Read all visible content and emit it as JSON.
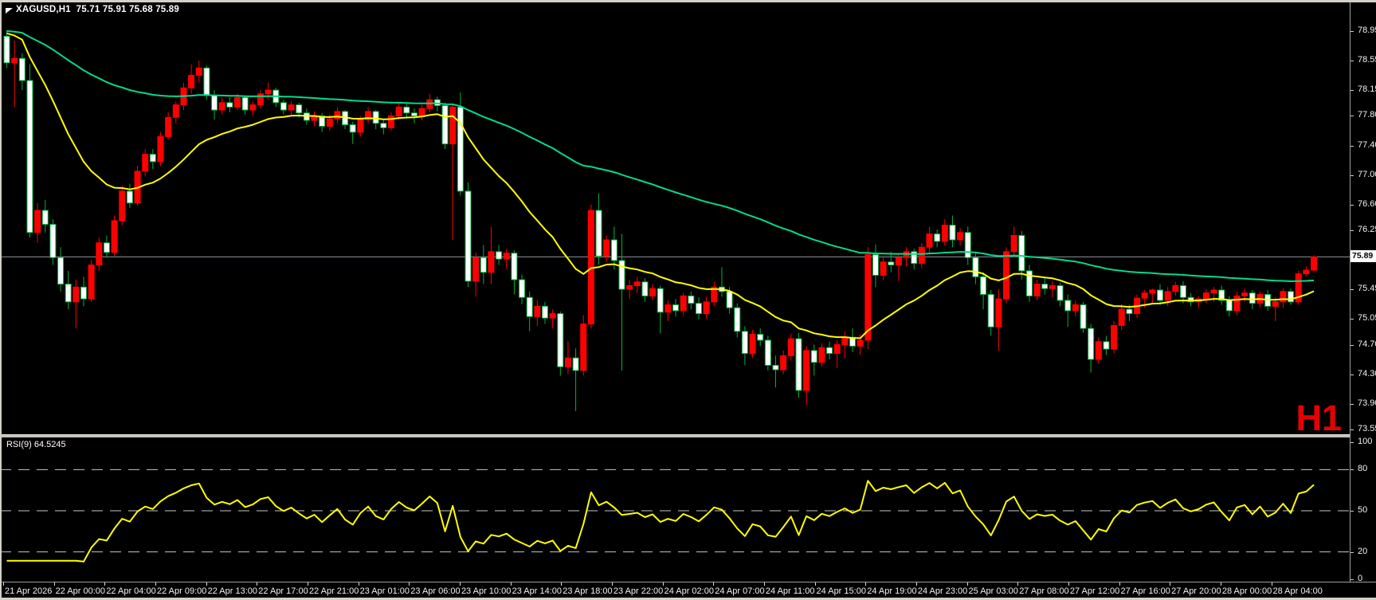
{
  "header": {
    "title": "XAGUSD,H1  75.71 75.91 75.68 75.89"
  },
  "colors": {
    "background": "#000000",
    "chrome": "#d4d0c8",
    "bull": "#FF0000",
    "bear_fill": "#FFFFFF",
    "bear_border": "#00B43C",
    "ma_slow": "#00DC8C",
    "ma_fast": "#FFFF00",
    "rsi_line": "#FFFF00",
    "rsi_level": "#C8C8C8",
    "price_line": "#8E959C",
    "axis_text": "#F2F2F2",
    "watermark": "#E60000"
  },
  "chart_data": {
    "type": "candlestick",
    "symbol": "XAGUSD",
    "timeframe": "H1",
    "title": "XAGUSD,H1",
    "last_ohlc": {
      "open": "75.71",
      "high": "75.91",
      "low": "75.68",
      "close": "75.89"
    },
    "current_price": 75.89,
    "current_price_label": "75.89",
    "watermark": "H1",
    "price_axis_ticks": [
      78.95,
      78.55,
      78.15,
      77.8,
      77.4,
      77.0,
      76.6,
      76.25,
      75.45,
      75.05,
      74.7,
      74.3,
      73.9,
      73.55
    ],
    "ylim": [
      73.48,
      79.33
    ],
    "grid": "off",
    "legend_position": "none",
    "indicators": [
      {
        "name": "ma-slow",
        "type": "ema",
        "period": 90,
        "color": "#00DC8C"
      },
      {
        "name": "ma-fast",
        "type": "ema",
        "period": 21,
        "color": "#FFFF00"
      }
    ],
    "rsi": {
      "label": "RSI(9) 64.5245",
      "period": 9,
      "last_value": 64.5245,
      "levels": [
        80,
        50,
        20
      ],
      "scale_labels": [
        100,
        80,
        50,
        20,
        0
      ],
      "range": [
        0,
        100
      ],
      "color": "#FFFF00"
    },
    "time_labels": [
      "21 Apr 2026",
      "22 Apr 00:00",
      "22 Apr 04:00",
      "22 Apr 09:00",
      "22 Apr 13:00",
      "22 Apr 17:00",
      "22 Apr 21:00",
      "23 Apr 01:00",
      "23 Apr 06:00",
      "23 Apr 10:00",
      "23 Apr 14:00",
      "23 Apr 18:00",
      "23 Apr 22:00",
      "24 Apr 02:00",
      "24 Apr 07:00",
      "24 Apr 11:00",
      "24 Apr 15:00",
      "24 Apr 19:00",
      "24 Apr 23:00",
      "25 Apr 03:00",
      "27 Apr 08:00",
      "27 Apr 12:00",
      "27 Apr 16:00",
      "27 Apr 20:00",
      "28 Apr 00:00",
      "28 Apr 04:00"
    ],
    "candles": [
      [
        78.88,
        78.96,
        78.45,
        78.52
      ],
      [
        78.52,
        78.82,
        77.92,
        78.58
      ],
      [
        78.58,
        78.65,
        78.15,
        78.28
      ],
      [
        78.28,
        78.5,
        76.15,
        76.22
      ],
      [
        76.22,
        76.62,
        76.08,
        76.52
      ],
      [
        76.52,
        76.66,
        76.22,
        76.33
      ],
      [
        76.33,
        76.4,
        75.78,
        75.88
      ],
      [
        75.88,
        76.02,
        75.42,
        75.52
      ],
      [
        75.52,
        75.7,
        75.18,
        75.28
      ],
      [
        75.28,
        75.58,
        74.92,
        75.48
      ],
      [
        75.48,
        75.62,
        75.22,
        75.32
      ],
      [
        75.32,
        75.85,
        75.28,
        75.78
      ],
      [
        75.78,
        76.15,
        75.7,
        76.08
      ],
      [
        76.08,
        76.18,
        75.88,
        75.95
      ],
      [
        75.95,
        76.45,
        75.9,
        76.38
      ],
      [
        76.38,
        76.85,
        76.32,
        76.78
      ],
      [
        76.78,
        76.88,
        76.55,
        76.62
      ],
      [
        76.62,
        77.12,
        76.58,
        77.05
      ],
      [
        77.05,
        77.35,
        76.98,
        77.28
      ],
      [
        77.28,
        77.35,
        77.08,
        77.18
      ],
      [
        77.18,
        77.58,
        77.12,
        77.52
      ],
      [
        77.52,
        77.85,
        77.48,
        77.78
      ],
      [
        77.78,
        78.0,
        77.7,
        77.95
      ],
      [
        77.95,
        78.25,
        77.88,
        78.18
      ],
      [
        78.18,
        78.5,
        78.1,
        78.35
      ],
      [
        78.35,
        78.55,
        78.25,
        78.45
      ],
      [
        78.45,
        78.48,
        78.02,
        78.08
      ],
      [
        78.08,
        78.15,
        77.75,
        77.88
      ],
      [
        77.88,
        78.05,
        77.82,
        77.98
      ],
      [
        77.98,
        78.05,
        77.85,
        77.92
      ],
      [
        77.92,
        78.1,
        77.88,
        78.05
      ],
      [
        78.05,
        78.08,
        77.82,
        77.88
      ],
      [
        77.88,
        78.0,
        77.8,
        77.95
      ],
      [
        77.95,
        78.15,
        77.9,
        78.1
      ],
      [
        78.1,
        78.25,
        78.02,
        78.15
      ],
      [
        78.15,
        78.18,
        77.92,
        77.98
      ],
      [
        77.98,
        78.02,
        77.82,
        77.88
      ],
      [
        77.88,
        78.0,
        77.82,
        77.95
      ],
      [
        77.95,
        77.98,
        77.78,
        77.84
      ],
      [
        77.84,
        77.9,
        77.68,
        77.74
      ],
      [
        77.74,
        77.86,
        77.66,
        77.8
      ],
      [
        77.8,
        77.84,
        77.58,
        77.66
      ],
      [
        77.66,
        77.82,
        77.6,
        77.76
      ],
      [
        77.76,
        77.92,
        77.7,
        77.86
      ],
      [
        77.86,
        77.88,
        77.62,
        77.68
      ],
      [
        77.68,
        77.72,
        77.42,
        77.58
      ],
      [
        77.58,
        77.8,
        77.52,
        77.75
      ],
      [
        77.75,
        77.92,
        77.7,
        77.86
      ],
      [
        77.86,
        77.88,
        77.62,
        77.7
      ],
      [
        77.7,
        77.76,
        77.55,
        77.64
      ],
      [
        77.64,
        77.85,
        77.6,
        77.8
      ],
      [
        77.8,
        77.98,
        77.75,
        77.92
      ],
      [
        77.92,
        77.96,
        77.76,
        77.84
      ],
      [
        77.84,
        77.9,
        77.7,
        77.8
      ],
      [
        77.8,
        77.95,
        77.74,
        77.9
      ],
      [
        77.9,
        78.1,
        77.85,
        78.02
      ],
      [
        78.02,
        78.06,
        77.86,
        77.94
      ],
      [
        77.94,
        77.98,
        77.35,
        77.42
      ],
      [
        77.42,
        77.96,
        76.12,
        77.92
      ],
      [
        77.92,
        78.12,
        76.72,
        76.78
      ],
      [
        76.78,
        76.9,
        75.48,
        75.56
      ],
      [
        75.56,
        75.95,
        75.35,
        75.88
      ],
      [
        75.88,
        76.05,
        75.52,
        75.68
      ],
      [
        75.68,
        76.3,
        75.52,
        75.96
      ],
      [
        75.96,
        76.05,
        75.78,
        75.86
      ],
      [
        75.86,
        76.0,
        75.72,
        75.94
      ],
      [
        75.94,
        75.98,
        75.38,
        75.58
      ],
      [
        75.58,
        75.65,
        75.25,
        75.34
      ],
      [
        75.34,
        75.42,
        74.88,
        75.08
      ],
      [
        75.08,
        75.3,
        74.95,
        75.22
      ],
      [
        75.22,
        75.28,
        74.98,
        75.06
      ],
      [
        75.06,
        75.18,
        74.92,
        75.12
      ],
      [
        75.12,
        75.15,
        74.28,
        74.4
      ],
      [
        74.4,
        74.75,
        74.3,
        74.52
      ],
      [
        74.52,
        74.65,
        73.8,
        74.35
      ],
      [
        74.35,
        75.1,
        74.28,
        74.98
      ],
      [
        74.98,
        76.6,
        74.92,
        76.52
      ],
      [
        76.52,
        76.75,
        75.78,
        75.9
      ],
      [
        75.9,
        76.18,
        75.82,
        76.12
      ],
      [
        76.12,
        76.3,
        75.72,
        75.84
      ],
      [
        75.84,
        76.2,
        74.35,
        75.45
      ],
      [
        75.45,
        75.58,
        75.32,
        75.5
      ],
      [
        75.5,
        75.62,
        75.4,
        75.55
      ],
      [
        75.55,
        75.6,
        75.28,
        75.36
      ],
      [
        75.36,
        75.52,
        75.3,
        75.46
      ],
      [
        75.46,
        75.5,
        74.85,
        75.14
      ],
      [
        75.14,
        75.3,
        75.02,
        75.24
      ],
      [
        75.24,
        75.32,
        75.08,
        75.16
      ],
      [
        75.16,
        75.4,
        75.1,
        75.36
      ],
      [
        75.36,
        75.42,
        75.18,
        75.26
      ],
      [
        75.26,
        75.34,
        75.04,
        75.12
      ],
      [
        75.12,
        75.35,
        75.05,
        75.28
      ],
      [
        75.28,
        75.55,
        75.22,
        75.48
      ],
      [
        75.48,
        75.75,
        75.35,
        75.42
      ],
      [
        75.42,
        75.48,
        75.12,
        75.2
      ],
      [
        75.2,
        75.26,
        74.8,
        74.88
      ],
      [
        74.88,
        74.95,
        74.42,
        74.58
      ],
      [
        74.58,
        74.9,
        74.52,
        74.84
      ],
      [
        74.84,
        74.92,
        74.68,
        74.76
      ],
      [
        74.76,
        74.82,
        74.35,
        74.42
      ],
      [
        74.42,
        74.55,
        74.12,
        74.36
      ],
      [
        74.36,
        74.62,
        74.3,
        74.55
      ],
      [
        74.55,
        74.85,
        74.48,
        74.78
      ],
      [
        74.78,
        74.86,
        73.98,
        74.08
      ],
      [
        74.08,
        74.68,
        73.88,
        74.62
      ],
      [
        74.62,
        74.7,
        74.28,
        74.46
      ],
      [
        74.46,
        74.72,
        74.4,
        74.66
      ],
      [
        74.66,
        74.74,
        74.5,
        74.58
      ],
      [
        74.58,
        74.76,
        74.38,
        74.7
      ],
      [
        74.7,
        74.88,
        74.52,
        74.8
      ],
      [
        74.8,
        74.92,
        74.6,
        74.68
      ],
      [
        74.68,
        74.84,
        74.56,
        74.76
      ],
      [
        74.76,
        76.02,
        74.64,
        75.92
      ],
      [
        75.92,
        76.06,
        75.48,
        75.64
      ],
      [
        75.64,
        75.9,
        75.58,
        75.82
      ],
      [
        75.82,
        75.96,
        75.68,
        75.78
      ],
      [
        75.78,
        75.94,
        75.56,
        75.88
      ],
      [
        75.88,
        76.02,
        75.76,
        75.96
      ],
      [
        75.96,
        76.0,
        75.72,
        75.8
      ],
      [
        75.8,
        76.08,
        75.74,
        76.02
      ],
      [
        76.02,
        76.3,
        75.94,
        76.2
      ],
      [
        76.2,
        76.26,
        76.02,
        76.1
      ],
      [
        76.1,
        76.4,
        76.04,
        76.32
      ],
      [
        76.32,
        76.45,
        76.02,
        76.12
      ],
      [
        76.12,
        76.28,
        76.04,
        76.22
      ],
      [
        76.22,
        76.3,
        75.78,
        75.88
      ],
      [
        75.88,
        75.94,
        75.52,
        75.62
      ],
      [
        75.62,
        75.68,
        75.18,
        75.38
      ],
      [
        75.38,
        75.44,
        74.82,
        74.94
      ],
      [
        74.94,
        75.45,
        74.62,
        75.32
      ],
      [
        75.32,
        76.02,
        75.26,
        75.96
      ],
      [
        75.96,
        76.3,
        75.88,
        76.18
      ],
      [
        76.18,
        76.24,
        75.58,
        75.7
      ],
      [
        75.7,
        75.78,
        75.28,
        75.36
      ],
      [
        75.36,
        75.58,
        75.3,
        75.52
      ],
      [
        75.52,
        75.6,
        75.38,
        75.46
      ],
      [
        75.46,
        75.56,
        75.34,
        75.5
      ],
      [
        75.5,
        75.54,
        75.22,
        75.3
      ],
      [
        75.3,
        75.38,
        74.94,
        75.16
      ],
      [
        75.16,
        75.3,
        75.08,
        75.24
      ],
      [
        75.24,
        75.28,
        74.86,
        74.92
      ],
      [
        74.92,
        74.98,
        74.32,
        74.5
      ],
      [
        74.5,
        74.8,
        74.44,
        74.74
      ],
      [
        74.74,
        74.82,
        74.56,
        74.64
      ],
      [
        74.64,
        75.02,
        74.58,
        74.96
      ],
      [
        74.96,
        75.25,
        74.9,
        75.18
      ],
      [
        75.18,
        75.24,
        75.02,
        75.12
      ],
      [
        75.12,
        75.38,
        75.06,
        75.33
      ],
      [
        75.33,
        75.44,
        75.2,
        75.4
      ],
      [
        75.4,
        75.46,
        75.26,
        75.44
      ],
      [
        75.44,
        75.52,
        75.24,
        75.3
      ],
      [
        75.3,
        75.48,
        75.22,
        75.42
      ],
      [
        75.42,
        75.55,
        75.36,
        75.5
      ],
      [
        75.5,
        75.56,
        75.26,
        75.34
      ],
      [
        75.34,
        75.4,
        75.22,
        75.28
      ],
      [
        75.28,
        75.36,
        75.2,
        75.32
      ],
      [
        75.32,
        75.45,
        75.26,
        75.4
      ],
      [
        75.4,
        75.48,
        75.28,
        75.44
      ],
      [
        75.44,
        75.5,
        75.24,
        75.3
      ],
      [
        75.3,
        75.36,
        75.08,
        75.16
      ],
      [
        75.16,
        75.42,
        75.1,
        75.36
      ],
      [
        75.36,
        75.46,
        75.28,
        75.4
      ],
      [
        75.4,
        75.44,
        75.18,
        75.26
      ],
      [
        75.26,
        75.42,
        75.2,
        75.38
      ],
      [
        75.38,
        75.44,
        75.16,
        75.22
      ],
      [
        75.22,
        75.34,
        75.02,
        75.28
      ],
      [
        75.28,
        75.46,
        75.2,
        75.42
      ],
      [
        75.42,
        75.46,
        75.24,
        75.28
      ],
      [
        75.28,
        75.7,
        75.24,
        75.66
      ],
      [
        75.66,
        75.76,
        75.62,
        75.71
      ],
      [
        75.71,
        75.91,
        75.68,
        75.89
      ]
    ]
  }
}
